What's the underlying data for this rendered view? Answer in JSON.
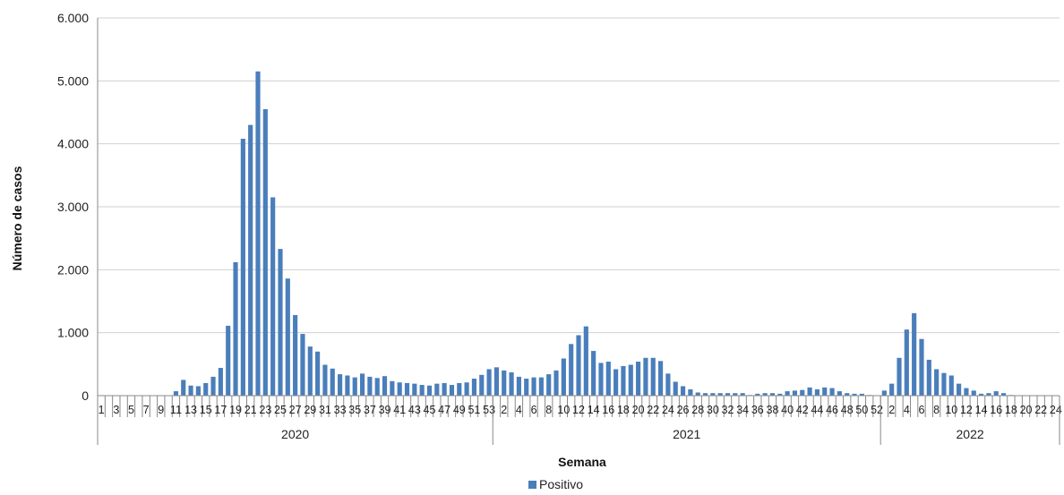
{
  "chart_data": {
    "type": "bar",
    "xlabel": "Semana",
    "ylabel": "Número de casos",
    "ylim": [
      0,
      6000
    ],
    "yticks": [
      0,
      1000,
      2000,
      3000,
      4000,
      5000,
      6000
    ],
    "ytick_labels": [
      "0",
      "1.000",
      "2.000",
      "3.000",
      "4.000",
      "5.000",
      "6.000"
    ],
    "grid": true,
    "legend_position": "bottom",
    "color": "#4A7EBB",
    "groups": [
      {
        "label": "2020",
        "weeks": [
          1,
          2,
          3,
          4,
          5,
          6,
          7,
          8,
          9,
          10,
          11,
          12,
          13,
          14,
          15,
          16,
          17,
          18,
          19,
          20,
          21,
          22,
          23,
          24,
          25,
          26,
          27,
          28,
          29,
          30,
          31,
          32,
          33,
          34,
          35,
          36,
          37,
          38,
          39,
          40,
          41,
          42,
          43,
          44,
          45,
          46,
          47,
          48,
          49,
          50,
          51,
          52,
          53
        ],
        "tick_labels": [
          "1",
          "3",
          "5",
          "7",
          "9",
          "11",
          "13",
          "15",
          "17",
          "19",
          "21",
          "23",
          "25",
          "27",
          "29",
          "31",
          "33",
          "35",
          "37",
          "39",
          "41",
          "43",
          "45",
          "47",
          "49",
          "51",
          "53"
        ],
        "values": [
          0,
          0,
          0,
          0,
          0,
          0,
          0,
          0,
          0,
          0,
          70,
          250,
          160,
          150,
          200,
          300,
          440,
          1110,
          2120,
          4080,
          4300,
          5150,
          4550,
          3150,
          2330,
          1860,
          1280,
          980,
          780,
          700,
          490,
          430,
          340,
          320,
          290,
          350,
          300,
          280,
          310,
          230,
          210,
          200,
          190,
          170,
          160,
          190,
          200,
          170,
          200,
          210,
          270,
          330,
          420
        ]
      },
      {
        "label": "2021",
        "weeks": [
          1,
          2,
          3,
          4,
          5,
          6,
          7,
          8,
          9,
          10,
          11,
          12,
          13,
          14,
          15,
          16,
          17,
          18,
          19,
          20,
          21,
          22,
          23,
          24,
          25,
          26,
          27,
          28,
          29,
          30,
          31,
          32,
          33,
          34,
          35,
          36,
          37,
          38,
          39,
          40,
          41,
          42,
          43,
          44,
          45,
          46,
          47,
          48,
          49,
          50,
          51,
          52
        ],
        "tick_labels": [
          "2",
          "4",
          "6",
          "8",
          "10",
          "12",
          "14",
          "16",
          "18",
          "20",
          "22",
          "24",
          "26",
          "28",
          "30",
          "32",
          "34",
          "36",
          "38",
          "40",
          "42",
          "44",
          "46",
          "48",
          "50",
          "52"
        ],
        "values": [
          450,
          400,
          370,
          300,
          270,
          290,
          290,
          340,
          400,
          590,
          820,
          960,
          1100,
          710,
          520,
          540,
          420,
          470,
          490,
          540,
          600,
          600,
          550,
          350,
          220,
          150,
          100,
          50,
          40,
          40,
          40,
          40,
          40,
          40,
          10,
          30,
          40,
          40,
          30,
          70,
          80,
          90,
          130,
          100,
          130,
          120,
          70,
          40,
          30,
          30,
          10,
          0
        ]
      },
      {
        "label": "2022",
        "weeks": [
          1,
          2,
          3,
          4,
          5,
          6,
          7,
          8,
          9,
          10,
          11,
          12,
          13,
          14,
          15,
          16,
          17,
          18,
          19,
          20,
          21,
          22,
          23,
          24
        ],
        "tick_labels": [
          "2",
          "4",
          "6",
          "8",
          "10",
          "12",
          "14",
          "16",
          "18",
          "20",
          "22",
          "24"
        ],
        "values": [
          80,
          190,
          600,
          1050,
          1310,
          900,
          570,
          420,
          360,
          320,
          190,
          120,
          80,
          30,
          40,
          70,
          40,
          10,
          0,
          0,
          0,
          0,
          0,
          0
        ]
      }
    ],
    "series": [
      {
        "name": "Positivo"
      }
    ]
  }
}
